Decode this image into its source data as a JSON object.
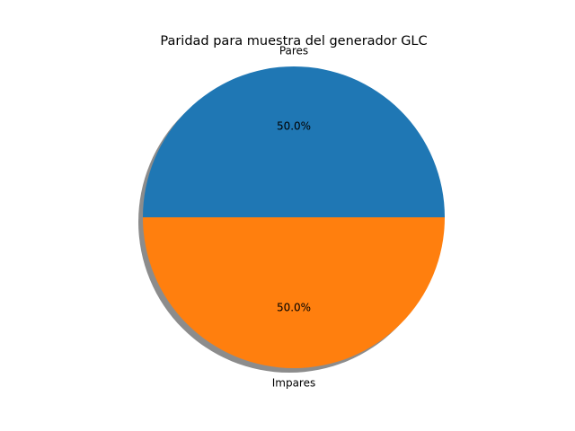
{
  "chart_data": {
    "type": "pie",
    "title": "Paridad para muestra del generador GLC",
    "labels": [
      "Pares",
      "Impares"
    ],
    "values": [
      50,
      50
    ],
    "percent_labels": [
      "50.0%",
      "50.0%"
    ],
    "colors": [
      "#1f77b4",
      "#ff7f0e"
    ],
    "shadow": true,
    "start_angle": 0,
    "direction": "counterclockwise",
    "legend": "none"
  }
}
